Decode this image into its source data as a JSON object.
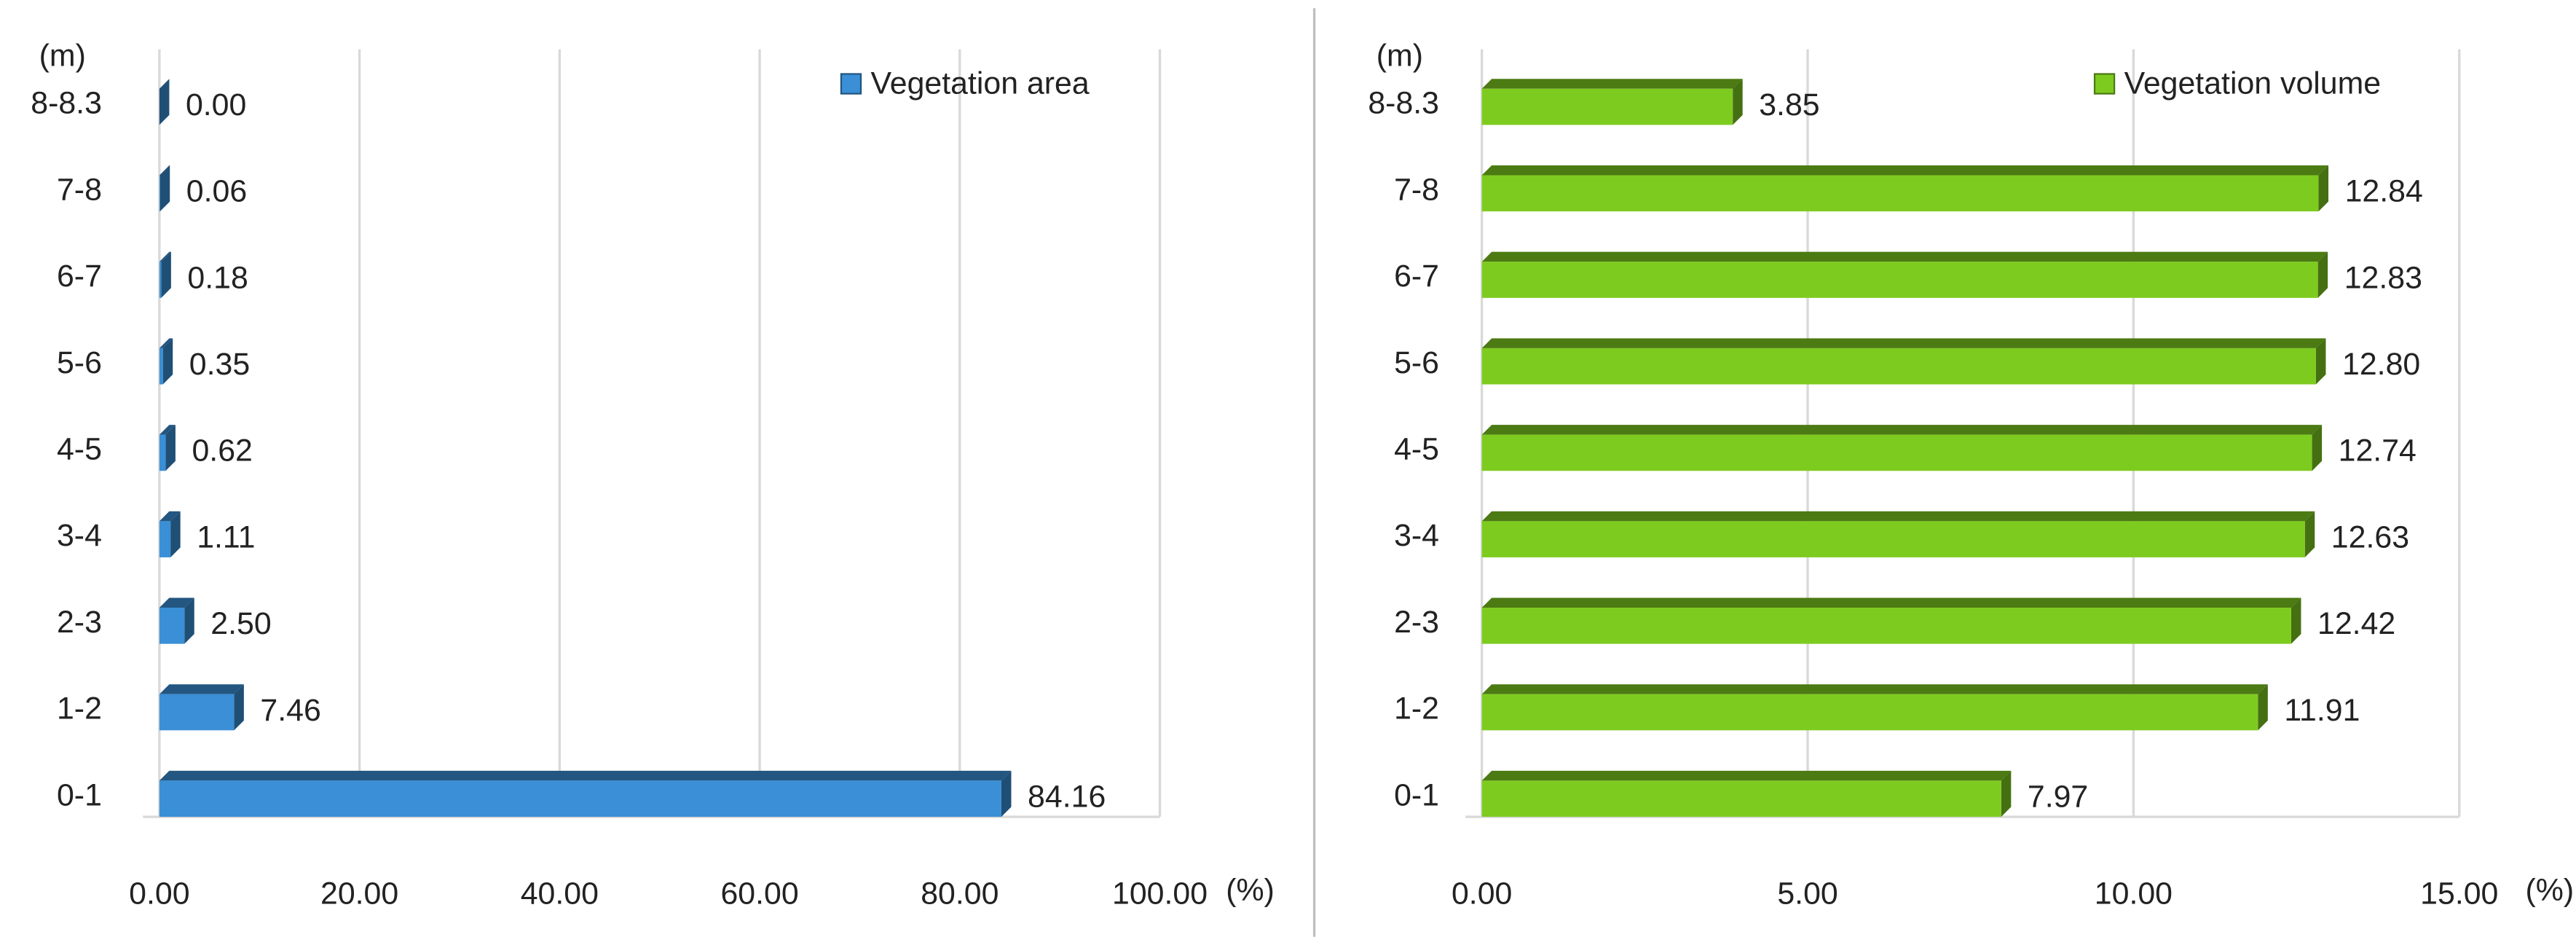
{
  "chart_data": [
    {
      "type": "bar",
      "orientation": "horizontal",
      "y_axis_label": "(m)",
      "x_axis_label": "(%)",
      "categories": [
        "0-1",
        "1-2",
        "2-3",
        "3-4",
        "4-5",
        "5-6",
        "6-7",
        "7-8",
        "8-8.3"
      ],
      "series": [
        {
          "name": "Vegetation area",
          "color": "#3a8fd6",
          "values": [
            84.16,
            7.46,
            2.5,
            1.11,
            0.62,
            0.35,
            0.18,
            0.06,
            0
          ],
          "value_labels": [
            "84.16",
            "7.46",
            "2.50",
            "1.11",
            "0.62",
            "0.35",
            "0.18",
            "0.06",
            "0.00"
          ]
        }
      ],
      "xlim": [
        0,
        100
      ],
      "xticks": [
        {
          "value": 0,
          "label": "0.00"
        },
        {
          "value": 20,
          "label": "20.00"
        },
        {
          "value": 40,
          "label": "40.00"
        },
        {
          "value": 60,
          "label": "60.00"
        },
        {
          "value": 80,
          "label": "80.00"
        },
        {
          "value": 100,
          "label": "100.00"
        }
      ],
      "grid": true,
      "legend": "top-right"
    },
    {
      "type": "bar",
      "orientation": "horizontal",
      "y_axis_label": "(m)",
      "x_axis_label": "(%)",
      "categories": [
        "0-1",
        "1-2",
        "2-3",
        "3-4",
        "4-5",
        "5-6",
        "6-7",
        "7-8",
        "8-8.3"
      ],
      "series": [
        {
          "name": "Vegetation volume",
          "color": "#7ecb20",
          "values": [
            7.97,
            11.91,
            12.42,
            12.63,
            12.74,
            12.8,
            12.83,
            12.84,
            3.85
          ],
          "value_labels": [
            "7.97",
            "11.91",
            "12.42",
            "12.63",
            "12.74",
            "12.80",
            "12.83",
            "12.84",
            "3.85"
          ]
        }
      ],
      "xlim": [
        0,
        15
      ],
      "xticks": [
        {
          "value": 0,
          "label": "0.00"
        },
        {
          "value": 5,
          "label": "5.00"
        },
        {
          "value": 10,
          "label": "10.00"
        },
        {
          "value": 15,
          "label": "15.00"
        }
      ],
      "grid": true,
      "legend": "top-right"
    }
  ]
}
